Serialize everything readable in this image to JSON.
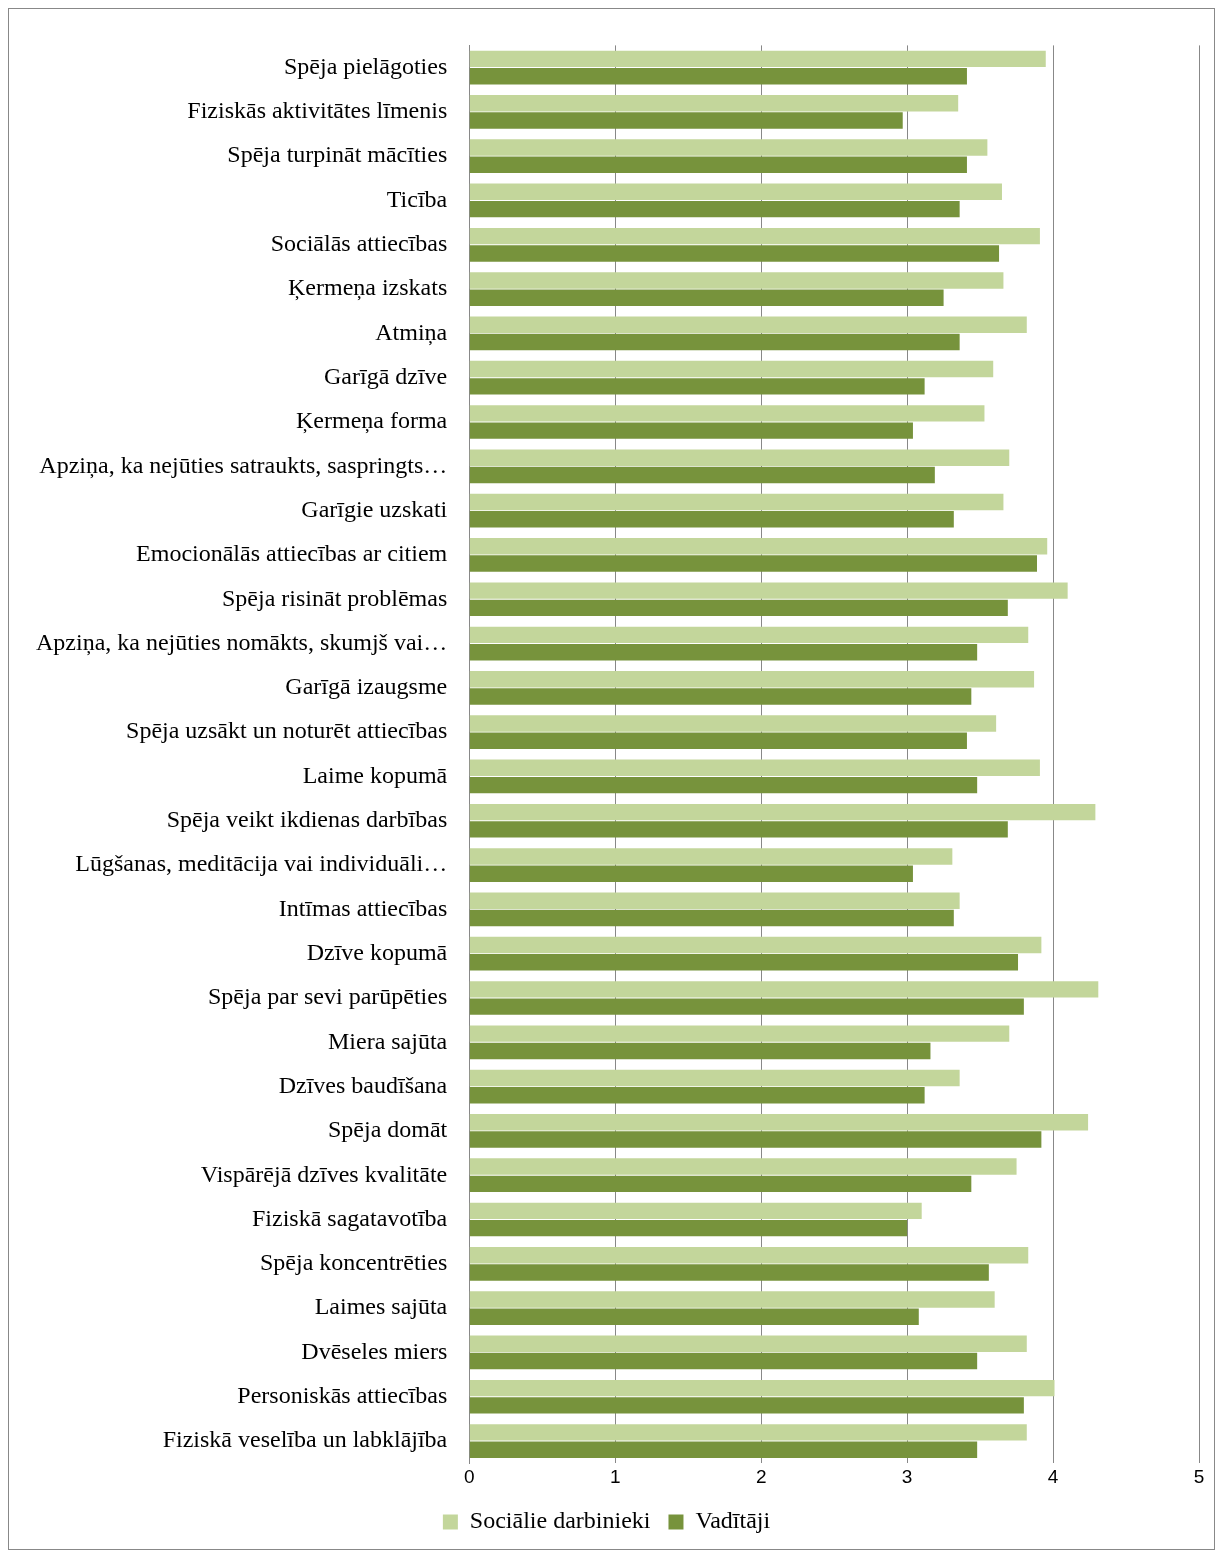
{
  "chart_data": {
    "type": "bar",
    "orientation": "horizontal",
    "categories": [
      "Spēja pielāgoties",
      "Fiziskās aktivitātes līmenis",
      "Spēja turpināt mācīties",
      "Ticība",
      "Sociālās attiecības",
      "Ķermeņa izskats",
      "Atmiņa",
      "Garīgā dzīve",
      "Ķermeņa forma",
      "Apziņa, ka nejūties satraukts, saspringts…",
      "Garīgie uzskati",
      "Emocionālās attiecības ar citiem",
      "Spēja risināt problēmas",
      "Apziņa, ka nejūties nomākts, skumjš vai…",
      "Garīgā izaugsme",
      "Spēja uzsākt un noturēt attiecības",
      "Laime kopumā",
      "Spēja veikt ikdienas darbības",
      "Lūgšanas, meditācija vai individuāli…",
      "Intīmas attiecības",
      "Dzīve kopumā",
      "Spēja par sevi parūpēties",
      "Miera sajūta",
      "Dzīves baudīšana",
      "Spēja domāt",
      "Vispārējā dzīves kvalitāte",
      "Fiziskā sagatavotība",
      "Spēja koncentrēties",
      "Laimes sajūta",
      "Dvēseles miers",
      "Personiskās attiecības",
      "Fiziskā veselība un labklājība"
    ],
    "series": [
      {
        "name": "Sociālie darbinieki",
        "color": "#c3d69b",
        "values": [
          3.95,
          3.35,
          3.55,
          3.65,
          3.91,
          3.66,
          3.82,
          3.59,
          3.53,
          3.7,
          3.66,
          3.96,
          4.1,
          3.83,
          3.87,
          3.61,
          3.91,
          4.29,
          3.31,
          3.36,
          3.92,
          4.31,
          3.7,
          3.36,
          4.24,
          3.75,
          3.1,
          3.83,
          3.6,
          3.82,
          4.01,
          3.82
        ]
      },
      {
        "name": "Vadītāji",
        "color": "#77933c",
        "values": [
          3.41,
          2.97,
          3.41,
          3.36,
          3.63,
          3.25,
          3.36,
          3.12,
          3.04,
          3.19,
          3.32,
          3.89,
          3.69,
          3.48,
          3.44,
          3.41,
          3.48,
          3.69,
          3.04,
          3.32,
          3.76,
          3.8,
          3.16,
          3.12,
          3.92,
          3.44,
          3.0,
          3.56,
          3.08,
          3.48,
          3.8,
          3.48
        ]
      }
    ],
    "xlim": [
      0,
      5
    ],
    "xticks": [
      0,
      1,
      2,
      3,
      4,
      5
    ],
    "grid": "x",
    "legend": "bottom"
  }
}
